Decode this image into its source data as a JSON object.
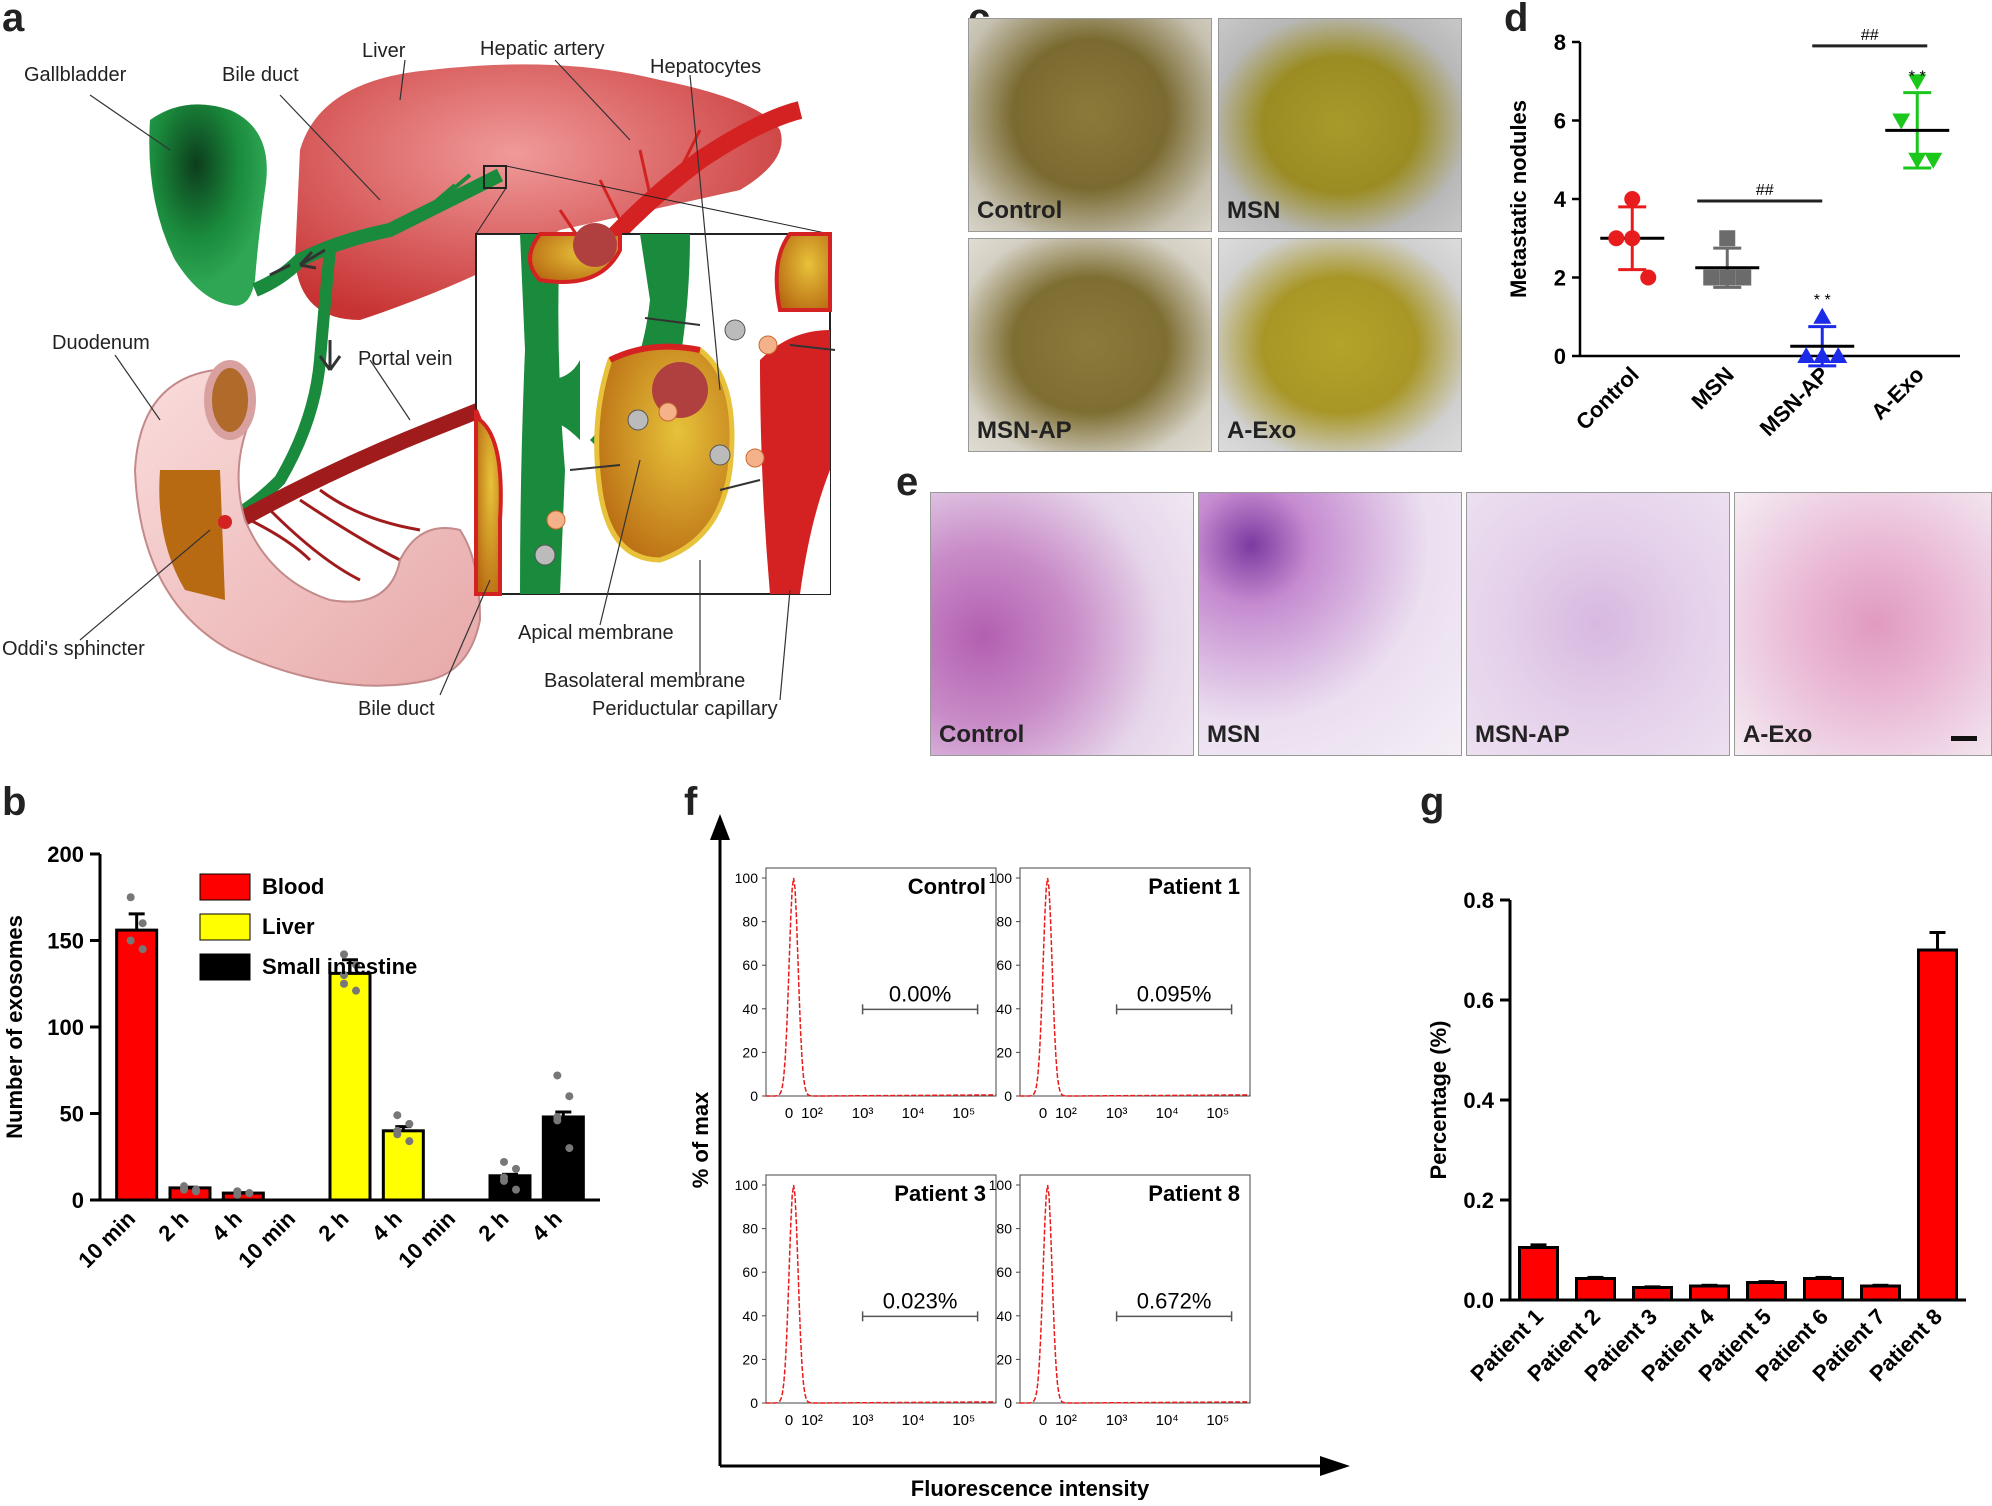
{
  "panels": {
    "a": "a",
    "b": "b",
    "c": "c",
    "d": "d",
    "e": "e",
    "f": "f",
    "g": "g"
  },
  "diagram_a": {
    "labels": {
      "gallbladder": "Gallbladder",
      "bile_duct_top": "Bile duct",
      "liver": "Liver",
      "hepatic_artery": "Hepatic artery",
      "hepatocytes": "Hepatocytes",
      "duodenum": "Duodenum",
      "portal_vein": "Portal vein",
      "oddis_sphincter": "Oddi's sphincter",
      "apical_membrane": "Apical membrane",
      "basolateral_membrane": "Basolateral membrane",
      "periductular_capillary": "Periductular capillary",
      "bile_duct_bottom": "Bile duct"
    },
    "colors": {
      "bile_duct": "#1a8a3c",
      "liver": "#d84a4a",
      "artery": "#d42222",
      "portal_vein": "#a01c1c",
      "duodenum": "#f2c6c6",
      "hepatocyte": "#c98a20"
    }
  },
  "photos_c": [
    "Control",
    "MSN",
    "MSN-AP",
    "A-Exo"
  ],
  "histology_e": [
    "Control",
    "MSN",
    "MSN-AP",
    "A-Exo"
  ],
  "chart_data": [
    {
      "panel": "b",
      "type": "bar",
      "ylabel": "Number of exosomes",
      "ylim": [
        0,
        200
      ],
      "yticks": [
        0,
        50,
        100,
        150,
        200
      ],
      "categories": [
        "10 min",
        "2 h",
        "4 h",
        "10 min",
        "2 h",
        "4 h",
        "10 min",
        "2 h",
        "4 h"
      ],
      "groups": [
        {
          "name": "Blood",
          "color": "#ff0000",
          "values": [
            156,
            7,
            4
          ],
          "points": [
            [
              175,
              160,
              150,
              145
            ],
            [
              8,
              6,
              7,
              5,
              6
            ],
            [
              5,
              4,
              3,
              4,
              5
            ]
          ]
        },
        {
          "name": "Liver",
          "color": "#ffff00",
          "values": [
            0,
            131,
            40
          ],
          "points": [
            [],
            [
              142,
              136,
              130,
              121,
              125
            ],
            [
              49,
              44,
              38,
              34,
              40
            ]
          ]
        },
        {
          "name": "Small intestine",
          "color": "#000000",
          "values": [
            0,
            14,
            48
          ],
          "points": [
            [],
            [
              22,
              18,
              11,
              6,
              13
            ],
            [
              72,
              60,
              46,
              30,
              48
            ]
          ]
        }
      ],
      "legend": [
        "Blood",
        "Liver",
        "Small intestine"
      ]
    },
    {
      "panel": "d",
      "type": "scatter",
      "ylabel": "Metastatic nodules",
      "ylim": [
        0,
        8
      ],
      "yticks": [
        0,
        2,
        4,
        6,
        8
      ],
      "categories": [
        "Control",
        "MSN",
        "MSN-AP",
        "A-Exo"
      ],
      "series": [
        {
          "name": "Control",
          "color": "#e81c1c",
          "marker": "circle",
          "mean": 3.0,
          "sd": 0.8,
          "points": [
            4,
            3,
            3,
            2
          ]
        },
        {
          "name": "MSN",
          "color": "#6b6b6b",
          "marker": "square",
          "mean": 2.25,
          "sd": 0.5,
          "points": [
            3,
            2,
            2,
            2
          ]
        },
        {
          "name": "MSN-AP",
          "color": "#1c2be8",
          "marker": "triangle",
          "mean": 0.25,
          "sd": 0.5,
          "points": [
            1,
            0,
            0,
            0
          ]
        },
        {
          "name": "A-Exo",
          "color": "#1cc71c",
          "marker": "triangle-down",
          "mean": 5.75,
          "sd": 0.96,
          "points": [
            7,
            6,
            5,
            5
          ]
        }
      ],
      "annotations": {
        "sig_msn": "##",
        "sig_aexo": "##",
        "stars_msnap": "* *",
        "stars_aexo": "* *"
      }
    },
    {
      "panel": "f",
      "type": "line",
      "xlabel": "Fluorescence intensity",
      "ylabel": "% of max",
      "ylim": [
        0,
        100
      ],
      "yticks": [
        0,
        20,
        40,
        60,
        80,
        100
      ],
      "xticks": [
        "0",
        "10²",
        "10³",
        "10⁴",
        "10⁵"
      ],
      "subplots": [
        {
          "title": "Control",
          "gate": "0.00%"
        },
        {
          "title": "Patient 1",
          "gate": "0.095%"
        },
        {
          "title": "Patient 3",
          "gate": "0.023%"
        },
        {
          "title": "Patient 8",
          "gate": "0.672%"
        }
      ]
    },
    {
      "panel": "g",
      "type": "bar",
      "ylabel": "Percentage (%)",
      "ylim": [
        0,
        0.8
      ],
      "yticks": [
        "0.0",
        "0.2",
        "0.4",
        "0.6",
        "0.8"
      ],
      "categories": [
        "Patient 1",
        "Patient 2",
        "Patient 3",
        "Patient 4",
        "Patient 5",
        "Patient 6",
        "Patient 7",
        "Patient 8"
      ],
      "values": [
        0.105,
        0.043,
        0.025,
        0.028,
        0.035,
        0.043,
        0.028,
        0.7
      ],
      "color": "#ff0000"
    }
  ]
}
